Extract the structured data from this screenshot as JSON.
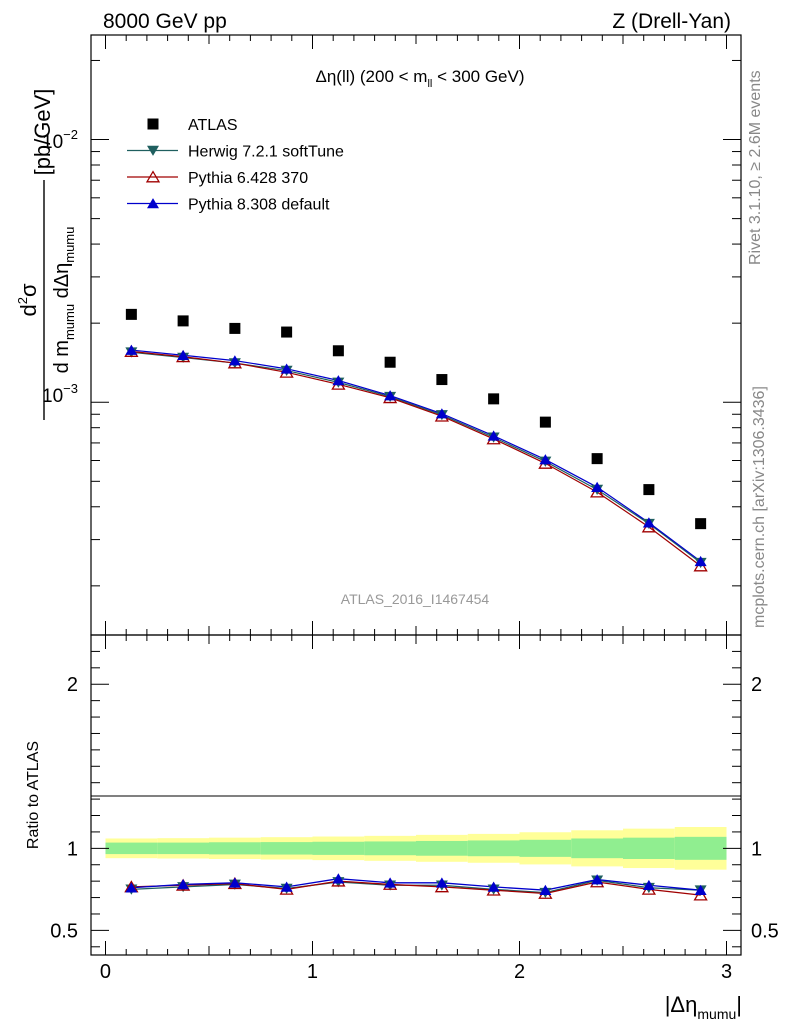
{
  "header": {
    "left": "8000 GeV pp",
    "right": "Z (Drell-Yan)"
  },
  "side_labels": {
    "rivet": "Rivet 3.1.10, ≥ 2.6M events",
    "mcplots": "mcplots.cern.ch [arXiv:1306.3436]"
  },
  "watermark": "ATLAS_2016_I1467454",
  "chart_data": [
    {
      "type": "scatter",
      "panel": "main",
      "title": "Δη(ll) (200 < m_ll < 300 GeV)",
      "y_log": true,
      "ylim": [
        0.00013,
        0.025
      ],
      "xlim": [
        -0.07,
        3.07
      ],
      "ylabel": "d²σ / d m_mumu dΔη_mumu [pb/GeV]",
      "y_tick_labels": [
        "10⁻³",
        "10⁻²"
      ],
      "x": [
        0.125,
        0.375,
        0.625,
        0.875,
        1.125,
        1.375,
        1.625,
        1.875,
        2.125,
        2.375,
        2.625,
        2.875
      ],
      "legend_position": "top-left",
      "series": [
        {
          "name": "ATLAS",
          "color": "#000000",
          "marker": "square",
          "values": [
            0.00216,
            0.00204,
            0.00191,
            0.00185,
            0.00157,
            0.00142,
            0.00122,
            0.00103,
            0.00084,
            0.00061,
            0.000465,
            0.000345
          ]
        },
        {
          "name": "Herwig 7.2.1 softTune",
          "color": "#1f5f5f",
          "marker": "triangle-down",
          "values": [
            0.00155,
            0.00148,
            0.00141,
            0.00132,
            0.00119,
            0.00105,
            0.000895,
            0.000735,
            0.000595,
            0.000465,
            0.000345,
            0.000245
          ]
        },
        {
          "name": "Pythia 6.428 370",
          "color": "#a00000",
          "marker": "triangle-up-open",
          "values": [
            0.00156,
            0.00149,
            0.00141,
            0.0013,
            0.00117,
            0.00104,
            0.000885,
            0.000725,
            0.000585,
            0.000455,
            0.000335,
            0.000238
          ]
        },
        {
          "name": "Pythia 8.308 default",
          "color": "#0000cc",
          "marker": "triangle-up",
          "values": [
            0.00158,
            0.00151,
            0.00144,
            0.00134,
            0.00121,
            0.00106,
            0.000905,
            0.000745,
            0.000605,
            0.000475,
            0.000348,
            0.000248
          ]
        }
      ]
    },
    {
      "type": "line",
      "panel": "ratio",
      "ylabel": "Ratio to ATLAS",
      "xlabel": "|Δη_mumu|",
      "ylim": [
        0.35,
        2.3
      ],
      "xlim": [
        -0.07,
        3.07
      ],
      "y_tick_labels": [
        "0.5",
        "1",
        "2"
      ],
      "x_tick_labels": [
        "0",
        "1",
        "2",
        "3"
      ],
      "x": [
        0.125,
        0.375,
        0.625,
        0.875,
        1.125,
        1.375,
        1.625,
        1.875,
        2.125,
        2.375,
        2.625,
        2.875
      ],
      "bin_edges": [
        0,
        0.25,
        0.5,
        0.75,
        1.0,
        1.25,
        1.5,
        1.75,
        2.0,
        2.25,
        2.5,
        2.75,
        3.0
      ],
      "band_inner_halfwidth": [
        0.035,
        0.035,
        0.037,
        0.038,
        0.04,
        0.042,
        0.045,
        0.048,
        0.052,
        0.06,
        0.065,
        0.07
      ],
      "band_outer_halfwidth": [
        0.06,
        0.062,
        0.065,
        0.068,
        0.072,
        0.076,
        0.082,
        0.088,
        0.098,
        0.11,
        0.12,
        0.13
      ],
      "band_colors": {
        "inner": "#90ee90",
        "outer": "#ffff99"
      },
      "series": [
        {
          "name": "Herwig 7.2.1 softTune",
          "color": "#1f5f5f",
          "marker": "triangle-down",
          "values": [
            0.75,
            0.765,
            0.78,
            0.755,
            0.795,
            0.775,
            0.775,
            0.75,
            0.73,
            0.805,
            0.76,
            0.745
          ]
        },
        {
          "name": "Pythia 6.428 370",
          "color": "#a00000",
          "marker": "triangle-up-open",
          "values": [
            0.765,
            0.775,
            0.785,
            0.75,
            0.8,
            0.78,
            0.765,
            0.745,
            0.725,
            0.795,
            0.75,
            0.715
          ]
        },
        {
          "name": "Pythia 8.308 default",
          "color": "#0000cc",
          "marker": "triangle-up",
          "values": [
            0.76,
            0.78,
            0.79,
            0.765,
            0.815,
            0.79,
            0.79,
            0.765,
            0.745,
            0.81,
            0.775,
            0.745
          ]
        }
      ]
    }
  ]
}
